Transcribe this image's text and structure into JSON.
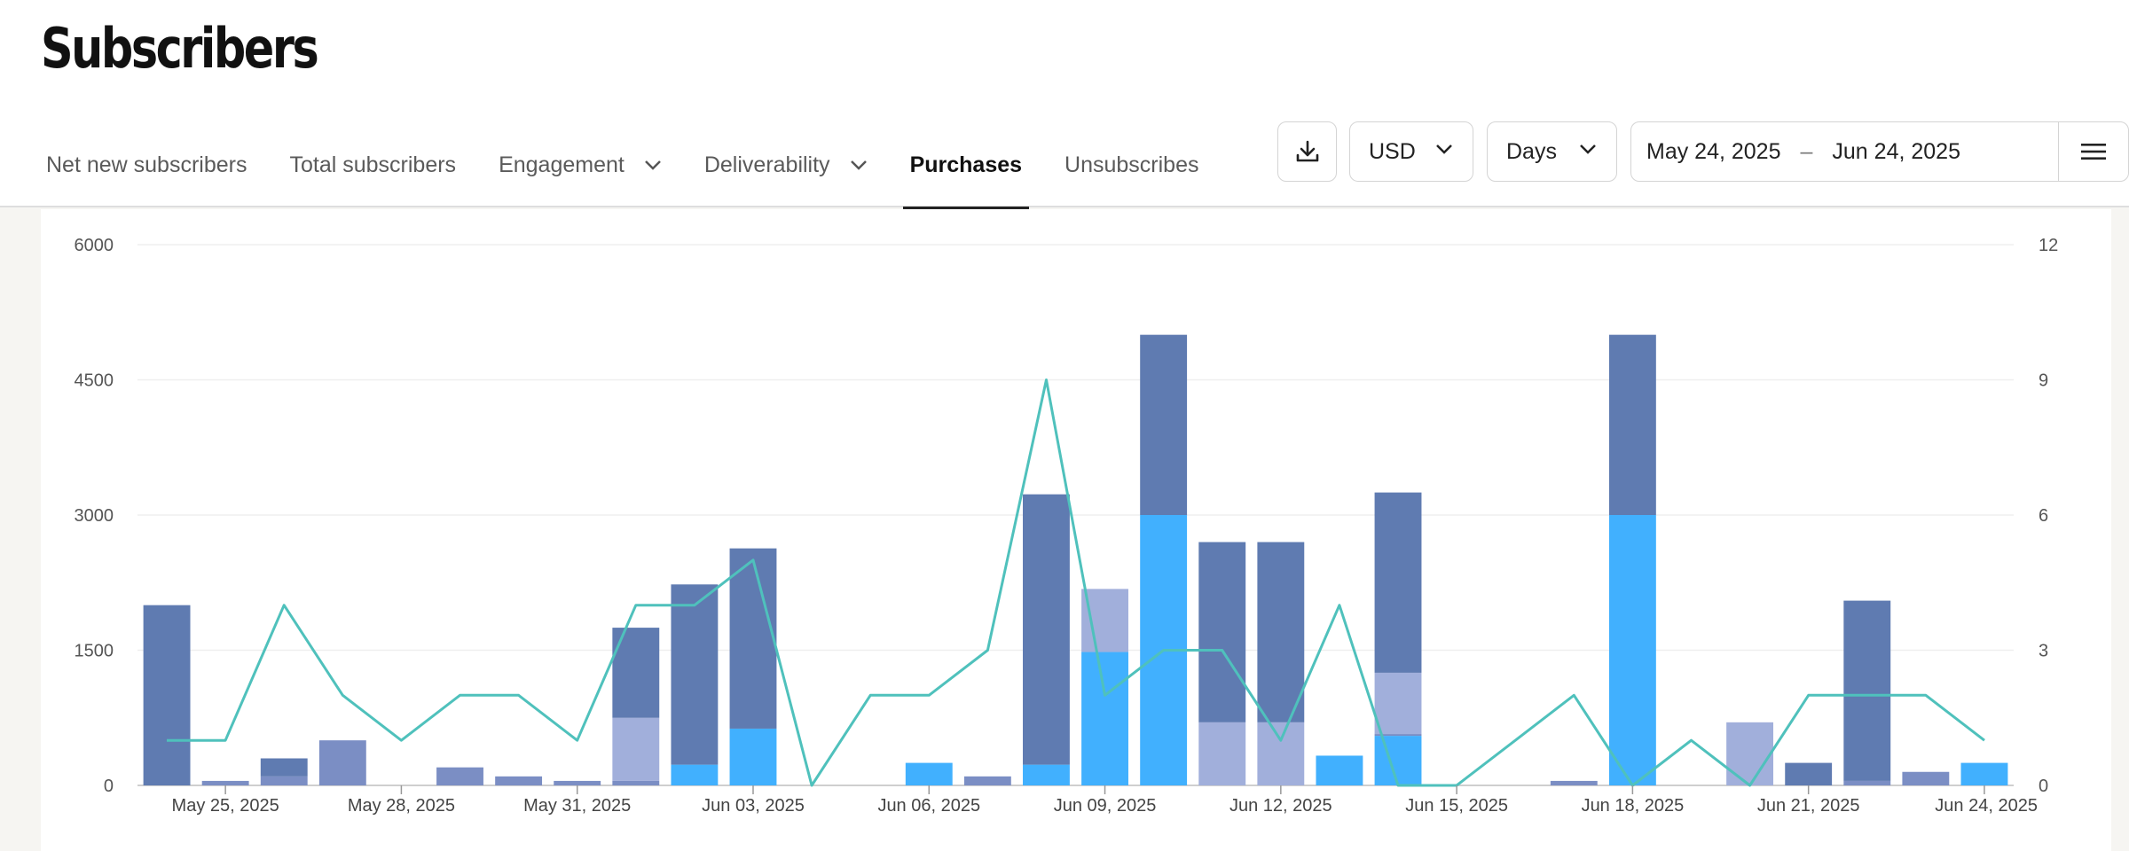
{
  "page": {
    "title": "Subscribers"
  },
  "tabs": [
    {
      "label": "Net new subscribers",
      "dropdown": false
    },
    {
      "label": "Total subscribers",
      "dropdown": false
    },
    {
      "label": "Engagement",
      "dropdown": true
    },
    {
      "label": "Deliverability",
      "dropdown": true
    },
    {
      "label": "Purchases",
      "dropdown": false,
      "active": true
    },
    {
      "label": "Unsubscribes",
      "dropdown": false
    }
  ],
  "controls": {
    "download_icon": "download-icon",
    "currency": "USD",
    "period": "Days",
    "date_start": "May 24, 2025",
    "date_separator": "–",
    "date_end": "Jun 24, 2025",
    "menu_icon": "hamburger-menu-icon"
  },
  "chart_data": {
    "type": "bar",
    "stacked": true,
    "x": [
      "May 24, 2025",
      "May 25, 2025",
      "May 26, 2025",
      "May 27, 2025",
      "May 28, 2025",
      "May 29, 2025",
      "May 30, 2025",
      "May 31, 2025",
      "Jun 01, 2025",
      "Jun 02, 2025",
      "Jun 03, 2025",
      "Jun 04, 2025",
      "Jun 05, 2025",
      "Jun 06, 2025",
      "Jun 07, 2025",
      "Jun 08, 2025",
      "Jun 09, 2025",
      "Jun 10, 2025",
      "Jun 11, 2025",
      "Jun 12, 2025",
      "Jun 13, 2025",
      "Jun 14, 2025",
      "Jun 15, 2025",
      "Jun 16, 2025",
      "Jun 17, 2025",
      "Jun 18, 2025",
      "Jun 19, 2025",
      "Jun 20, 2025",
      "Jun 21, 2025",
      "Jun 22, 2025",
      "Jun 23, 2025",
      "Jun 24, 2025"
    ],
    "x_tick_labels": [
      "May 25, 2025",
      "May 28, 2025",
      "May 31, 2025",
      "Jun 03, 2025",
      "Jun 06, 2025",
      "Jun 09, 2025",
      "Jun 12, 2025",
      "Jun 15, 2025",
      "Jun 18, 2025",
      "Jun 21, 2025",
      "Jun 24, 2025"
    ],
    "series": [
      {
        "color": "#41b0fe",
        "values": [
          0,
          0,
          0,
          0,
          0,
          0,
          0,
          0,
          0,
          230,
          630,
          0,
          0,
          250,
          0,
          230,
          1480,
          3000,
          0,
          0,
          330,
          550,
          0,
          0,
          0,
          3000,
          0,
          0,
          0,
          0,
          0,
          250
        ]
      },
      {
        "color": "#7b8ec4",
        "values": [
          0,
          50,
          100,
          500,
          0,
          200,
          100,
          50,
          50,
          0,
          0,
          0,
          0,
          0,
          100,
          0,
          0,
          0,
          0,
          0,
          0,
          20,
          0,
          0,
          50,
          0,
          0,
          0,
          0,
          50,
          150,
          0
        ]
      },
      {
        "color": "#a1afdb",
        "values": [
          0,
          0,
          0,
          0,
          0,
          0,
          0,
          0,
          700,
          0,
          0,
          0,
          0,
          0,
          0,
          0,
          700,
          0,
          700,
          700,
          0,
          680,
          0,
          0,
          0,
          0,
          0,
          700,
          0,
          0,
          0,
          0
        ]
      },
      {
        "color": "#5f7bb1",
        "values": [
          2000,
          0,
          200,
          0,
          0,
          0,
          0,
          0,
          1000,
          2000,
          2000,
          0,
          0,
          0,
          0,
          3000,
          0,
          2000,
          2000,
          2000,
          0,
          2000,
          0,
          0,
          0,
          2000,
          0,
          0,
          250,
          2000,
          0,
          0
        ]
      }
    ],
    "line": {
      "color": "#4fc1bc",
      "axis": "right",
      "values": [
        1,
        1,
        4,
        2,
        1,
        2,
        2,
        1,
        4,
        4,
        5,
        0,
        2,
        2,
        3,
        9,
        2,
        3,
        3,
        1,
        4,
        0,
        0,
        1,
        2,
        0,
        1,
        0,
        2,
        2,
        2,
        1
      ]
    },
    "y_left": {
      "min": 0,
      "max": 6000,
      "ticks": [
        0,
        1500,
        3000,
        4500,
        6000
      ]
    },
    "y_right": {
      "min": 0,
      "max": 12,
      "ticks": [
        0,
        3,
        6,
        9,
        12
      ]
    },
    "grid": true,
    "legend": "none"
  }
}
